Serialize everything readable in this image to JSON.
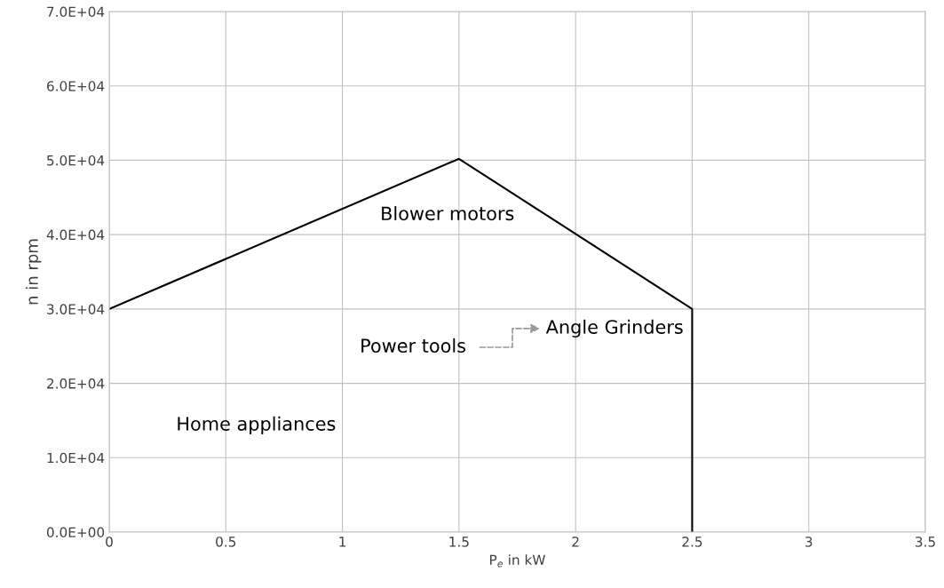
{
  "chart_data": {
    "type": "line",
    "xlabel": "P$_{e}$ in kW",
    "ylabel": "n in rpm",
    "series": [
      {
        "color": "#000000",
        "x": [
          0,
          1.5,
          2.5,
          2.5
        ],
        "values": [
          30000,
          50200,
          30000,
          0
        ]
      }
    ],
    "xlim": [
      0,
      3.5
    ],
    "xticks": [
      0,
      0.5,
      1,
      1.5,
      2,
      2.5,
      3,
      3.5
    ],
    "ylim": [
      0,
      70000
    ],
    "yticks": [
      {
        "value": 0,
        "label": "0.0E+00"
      },
      {
        "value": 10000,
        "label": "1.0E+04"
      },
      {
        "value": 20000,
        "label": "2.0E+04"
      },
      {
        "value": 30000,
        "label": "3.0E+04"
      },
      {
        "value": 40000,
        "label": "4.0E+04"
      },
      {
        "value": 50000,
        "label": "5.0E+04"
      },
      {
        "value": 60000,
        "label": "6.0E+04"
      },
      {
        "value": 70000,
        "label": "7.0E+04"
      }
    ],
    "grid": true,
    "marker": "none",
    "line_style": "solid",
    "annotations": [
      "Blower motors",
      "Home appliances",
      "Power tools",
      "Angle Grinders"
    ]
  }
}
